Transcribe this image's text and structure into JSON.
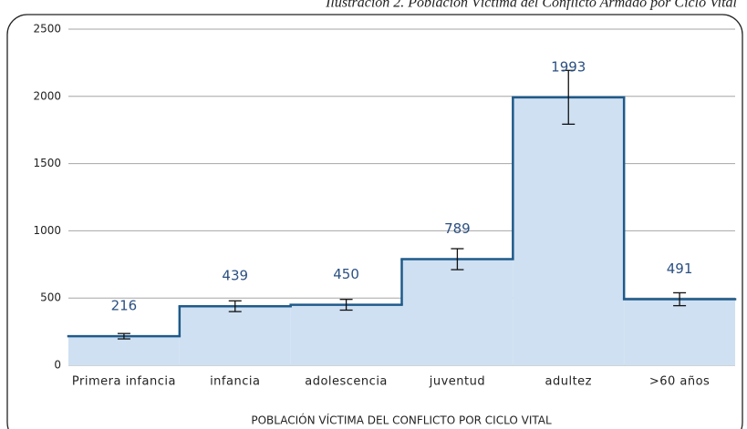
{
  "chart_data": {
    "type": "step",
    "title": "Ilustración 2. Población Víctima del Conflicto Armado por Ciclo Vital",
    "xlabel": "POBLACIÓN VÍCTIMA DEL CONFLICTO POR CICLO VITAL",
    "categories": [
      "Primera infancia",
      "infancia",
      "adolescencia",
      "juventud",
      "adultez",
      ">60 años"
    ],
    "values": [
      216,
      439,
      450,
      789,
      1993,
      491
    ],
    "errors": [
      20,
      40,
      40,
      78,
      200,
      48
    ],
    "color": "#1f5a8a",
    "fill": "#cfe0f2",
    "label_color": "#2b5082",
    "ylim": [
      0,
      2500
    ],
    "yticks": [
      0,
      500,
      1000,
      1500,
      2000,
      2500
    ],
    "grid": true
  }
}
